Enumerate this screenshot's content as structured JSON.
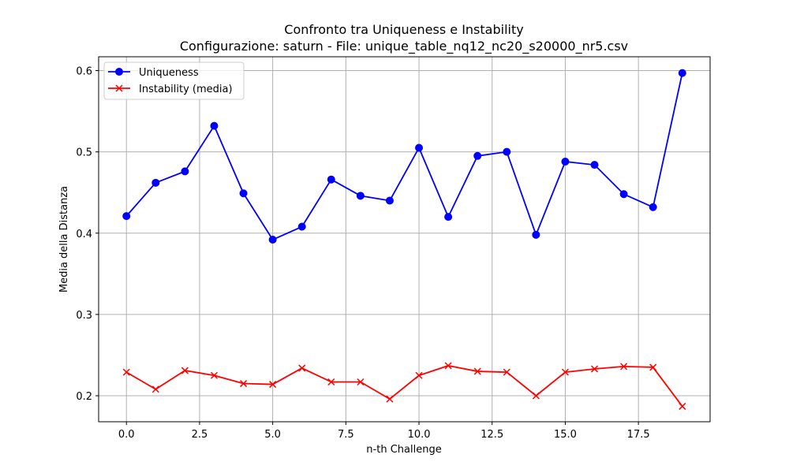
{
  "chart_data": {
    "type": "line",
    "title": "Confronto tra Uniqueness e Instability",
    "subtitle": "Configurazione: saturn - File: unique_table_nq12_nc20_s20000_nr5.csv",
    "xlabel": "n-th Challenge",
    "ylabel": "Media della Distanza",
    "xlim": [
      -0.95,
      19.95
    ],
    "ylim": [
      0.168,
      0.617
    ],
    "xticks": [
      0,
      2.5,
      5,
      7.5,
      10,
      12.5,
      15,
      17.5
    ],
    "xtick_labels": [
      "0.0",
      "2.5",
      "5.0",
      "7.5",
      "10.0",
      "12.5",
      "15.0",
      "17.5"
    ],
    "yticks": [
      0.2,
      0.3,
      0.4,
      0.5,
      0.6
    ],
    "ytick_labels": [
      "0.2",
      "0.3",
      "0.4",
      "0.5",
      "0.6"
    ],
    "grid": true,
    "legend_position": "top-left",
    "x": [
      0,
      1,
      2,
      3,
      4,
      5,
      6,
      7,
      8,
      9,
      10,
      11,
      12,
      13,
      14,
      15,
      16,
      17,
      18,
      19
    ],
    "series": [
      {
        "name": "Uniqueness",
        "color": "#0000ff",
        "marker": "circle",
        "values": [
          0.421,
          0.462,
          0.476,
          0.532,
          0.449,
          0.392,
          0.408,
          0.466,
          0.446,
          0.44,
          0.505,
          0.42,
          0.495,
          0.5,
          0.398,
          0.488,
          0.484,
          0.448,
          0.432,
          0.597
        ]
      },
      {
        "name": "Instability (media)",
        "color": "#ff0000",
        "marker": "x",
        "values": [
          0.229,
          0.208,
          0.231,
          0.225,
          0.215,
          0.214,
          0.234,
          0.217,
          0.217,
          0.196,
          0.225,
          0.237,
          0.23,
          0.229,
          0.2,
          0.229,
          0.233,
          0.236,
          0.235,
          0.187
        ]
      }
    ]
  }
}
